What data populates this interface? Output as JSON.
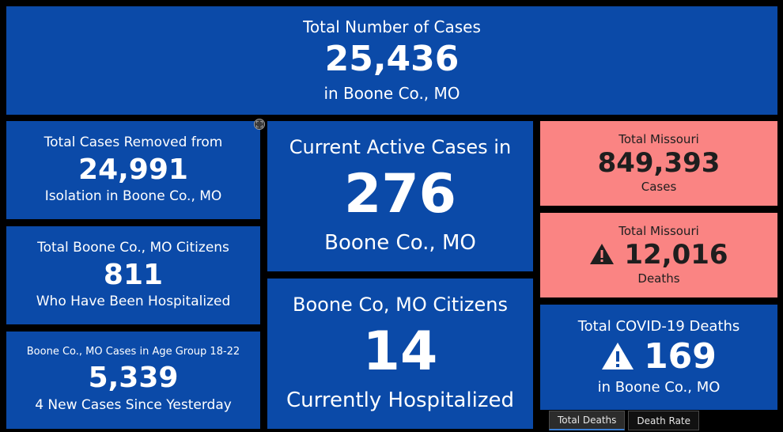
{
  "top_tile": {
    "title": "Total Number of Cases",
    "value": "25,436",
    "subtitle": "in Boone Co., MO"
  },
  "removed_tile": {
    "title": "Total Cases Removed from",
    "value": "24,991",
    "subtitle": "Isolation in Boone Co., MO"
  },
  "hospitalized_total_tile": {
    "title": "Total Boone Co., MO Citizens",
    "value": "811",
    "subtitle": "Who Have Been Hospitalized"
  },
  "age_group_tile": {
    "title": "Boone Co., MO Cases in Age Group 18-22",
    "value": "5,339",
    "subtitle": "4 New Cases Since Yesterday"
  },
  "active_tile": {
    "title": "Current Active Cases in",
    "value": "276",
    "subtitle": "Boone Co., MO"
  },
  "current_hospital_tile": {
    "title": "Boone Co, MO Citizens",
    "value": "14",
    "subtitle": "Currently Hospitalized"
  },
  "mo_cases_tile": {
    "title": "Total Missouri",
    "value": "849,393",
    "subtitle": "Cases"
  },
  "mo_deaths_tile": {
    "title": "Total Missouri",
    "value": "12,016",
    "subtitle": "Deaths",
    "icon": "warning-icon"
  },
  "boone_deaths_tile": {
    "title": "Total COVID-19 Deaths",
    "value": "169",
    "subtitle": "in Boone Co., MO",
    "icon": "warning-icon"
  },
  "tabs": [
    {
      "label": "Total Deaths",
      "active": true
    },
    {
      "label": "Death Rate",
      "active": false
    }
  ],
  "colors": {
    "tile_blue": "#0b4aa8",
    "tile_pink": "#fa8483",
    "background": "#000000"
  }
}
